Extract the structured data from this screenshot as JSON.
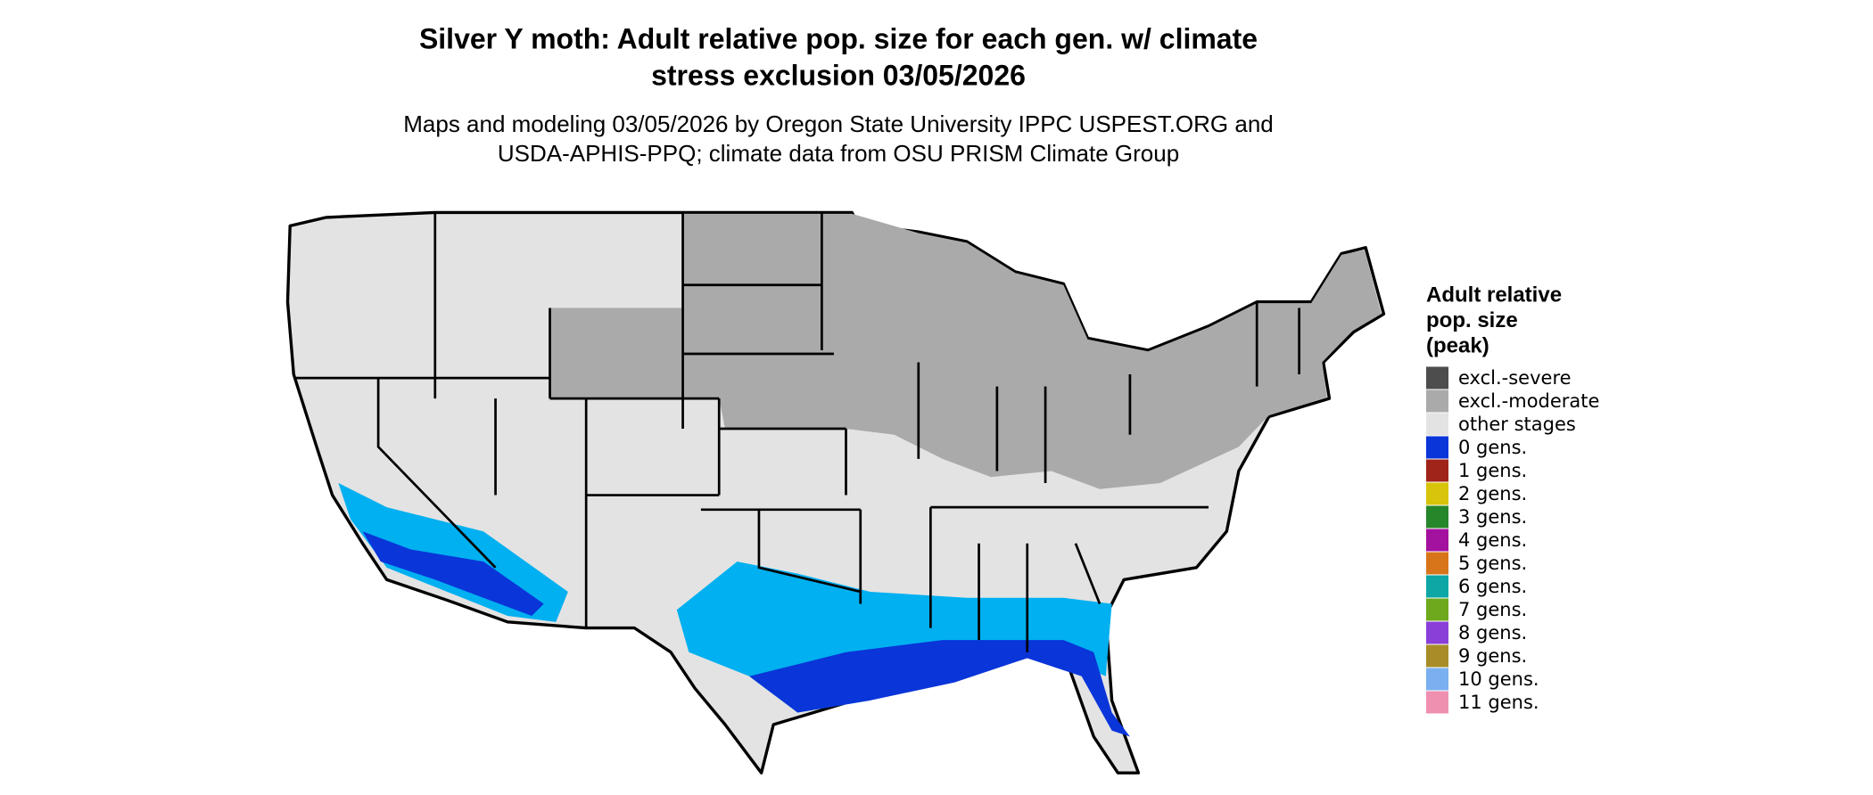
{
  "title": [
    "Silver Y moth: Adult relative pop. size for each gen. w/ climate",
    "stress exclusion 03/05/2026"
  ],
  "subtitle": [
    "Maps and modeling 03/05/2026 by Oregon State University IPPC USPEST.ORG and",
    "USDA-APHIS-PPQ; climate data from OSU PRISM Climate Group"
  ],
  "legend": {
    "title": [
      "Adult relative",
      "pop. size",
      "(peak)"
    ],
    "items": [
      {
        "label": "excl.-severe",
        "color": "#4d4d4d"
      },
      {
        "label": "excl.-moderate",
        "color": "#aaaaaa"
      },
      {
        "label": "other stages",
        "color": "#e3e3e3"
      },
      {
        "label": "0 gens.",
        "color": "#0a35d9"
      },
      {
        "label": "1 gens.",
        "color": "#a0241a"
      },
      {
        "label": "2 gens.",
        "color": "#d8c40a"
      },
      {
        "label": "3 gens.",
        "color": "#26862a"
      },
      {
        "label": "4 gens.",
        "color": "#a3119f"
      },
      {
        "label": "5 gens.",
        "color": "#d8741a"
      },
      {
        "label": "6 gens.",
        "color": "#0fa6a6"
      },
      {
        "label": "7 gens.",
        "color": "#6ea81c"
      },
      {
        "label": "8 gens.",
        "color": "#8a3fd8"
      },
      {
        "label": "9 gens.",
        "color": "#a88c28"
      },
      {
        "label": "10 gens.",
        "color": "#7ab0f0"
      },
      {
        "label": "11 gens.",
        "color": "#f090b0"
      }
    ]
  }
}
